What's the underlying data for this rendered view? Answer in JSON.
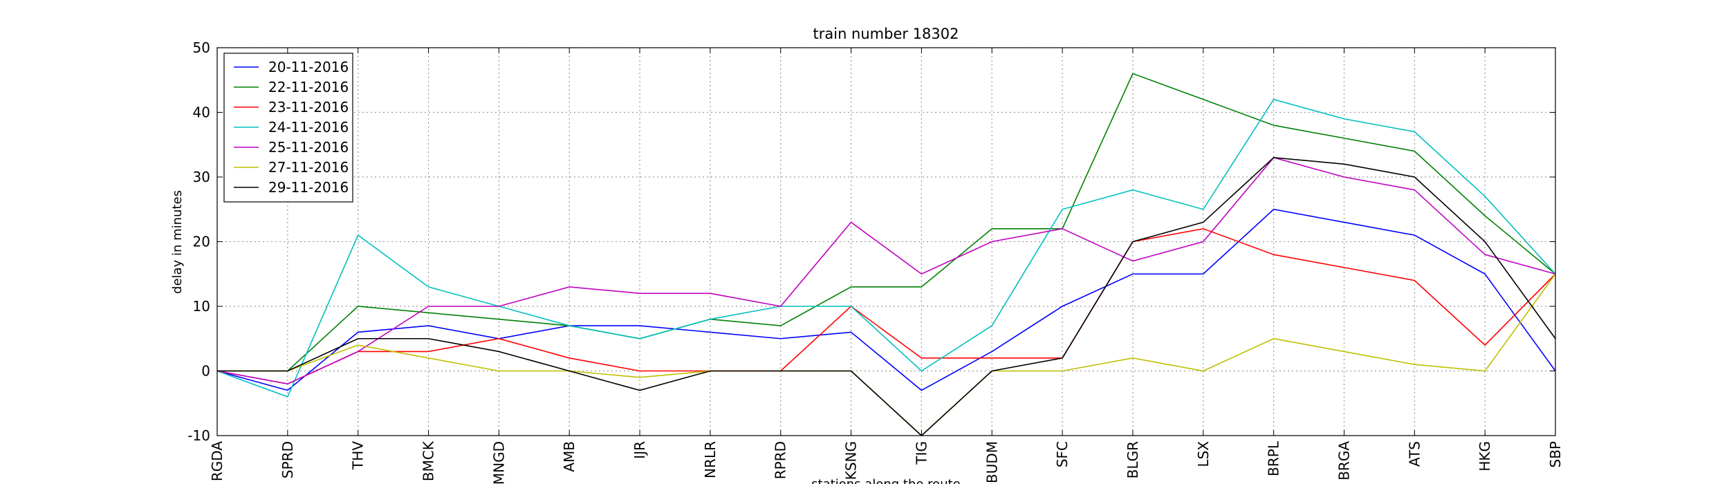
{
  "chart_data": {
    "type": "line",
    "title": "train number 18302",
    "xlabel": "stations along the route",
    "ylabel": "delay in minutes",
    "categories": [
      "RGDA",
      "SPRD",
      "THV",
      "BMCK",
      "MNGD",
      "AMB",
      "IJR",
      "NRLR",
      "RPRD",
      "KSNG",
      "TIG",
      "BUDM",
      "SFC",
      "BLGR",
      "LSX",
      "BRPL",
      "BRGA",
      "ATS",
      "HKG",
      "SBP"
    ],
    "series": [
      {
        "name": "20-11-2016",
        "color": "#0000ff",
        "values": [
          0,
          -3,
          6,
          7,
          5,
          7,
          7,
          6,
          5,
          6,
          -3,
          3,
          10,
          15,
          15,
          25,
          23,
          21,
          15,
          0
        ]
      },
      {
        "name": "22-11-2016",
        "color": "#008000",
        "values": [
          0,
          0,
          10,
          9,
          8,
          7,
          5,
          8,
          7,
          13,
          13,
          22,
          22,
          46,
          42,
          38,
          36,
          34,
          24,
          15
        ]
      },
      {
        "name": "23-11-2016",
        "color": "#ff0000",
        "values": [
          0,
          -2,
          3,
          3,
          5,
          2,
          0,
          0,
          0,
          10,
          2,
          2,
          2,
          20,
          22,
          18,
          16,
          14,
          4,
          15
        ]
      },
      {
        "name": "24-11-2016",
        "color": "#00bfbf",
        "values": [
          0,
          -4,
          21,
          13,
          10,
          7,
          5,
          8,
          10,
          10,
          0,
          7,
          25,
          28,
          25,
          42,
          39,
          37,
          27,
          15
        ]
      },
      {
        "name": "25-11-2016",
        "color": "#bf00bf",
        "values": [
          0,
          -2,
          3,
          10,
          10,
          13,
          12,
          12,
          10,
          23,
          15,
          20,
          22,
          17,
          20,
          33,
          30,
          28,
          18,
          15
        ]
      },
      {
        "name": "27-11-2016",
        "color": "#bfbf00",
        "values": [
          0,
          0,
          4,
          2,
          0,
          0,
          -1,
          0,
          0,
          0,
          -10,
          0,
          0,
          2,
          0,
          5,
          3,
          1,
          0,
          15
        ]
      },
      {
        "name": "29-11-2016",
        "color": "#000000",
        "values": [
          0,
          0,
          5,
          5,
          3,
          0,
          -3,
          0,
          0,
          0,
          -10,
          0,
          2,
          20,
          23,
          33,
          32,
          30,
          20,
          5
        ]
      }
    ],
    "ylim": [
      -10,
      50
    ],
    "yticks": [
      -10,
      0,
      10,
      20,
      30,
      40,
      50
    ],
    "grid": true,
    "legend": "upper left"
  }
}
